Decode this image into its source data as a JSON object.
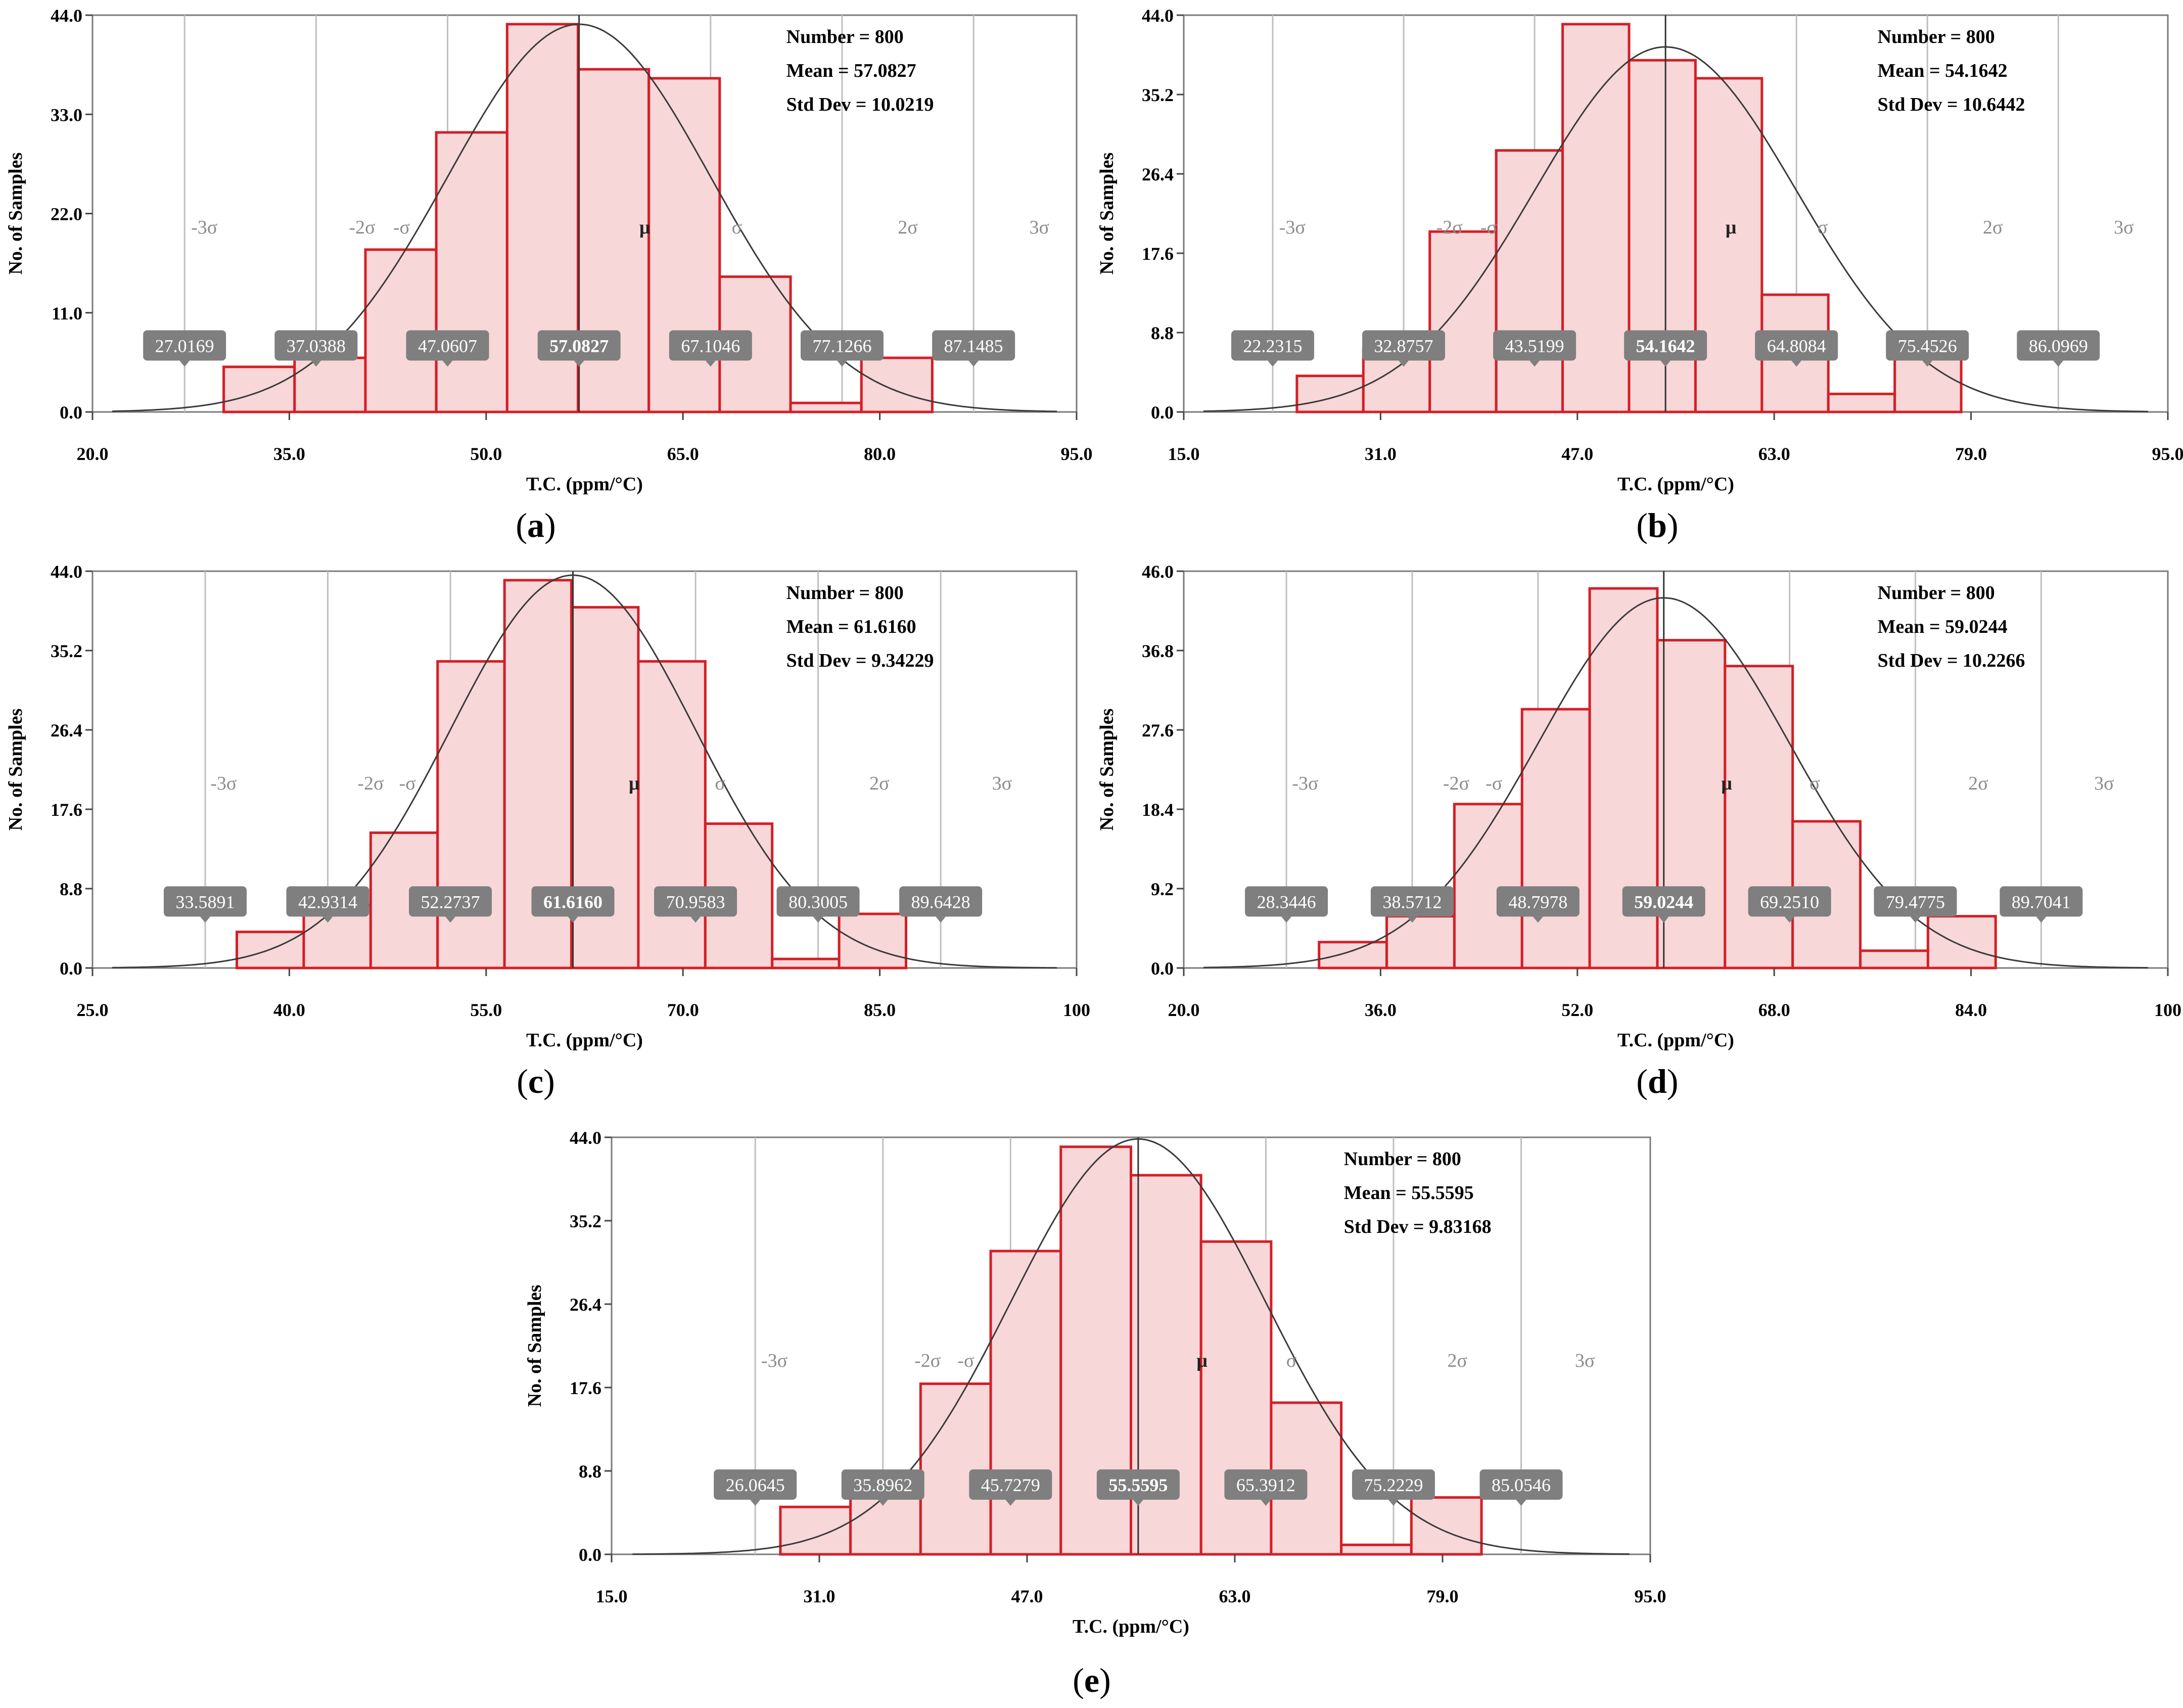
{
  "chart_data": [
    {
      "panel": "a",
      "type": "bar",
      "ylabel": "No. of Samples",
      "xlabel": "T.C. (ppm/°C)",
      "xlim": [
        20.0,
        95.0
      ],
      "ylim": [
        0.0,
        44.0
      ],
      "xticks": [
        "20.0",
        "35.0",
        "50.0",
        "65.0",
        "80.0",
        "95.0"
      ],
      "yticks": [
        "0.0",
        "11.0",
        "22.0",
        "33.0",
        "44.0"
      ],
      "bin_edges": [
        30.0,
        35.4,
        40.8,
        46.2,
        51.6,
        57.0,
        62.4,
        67.8,
        73.2,
        78.6,
        84.0
      ],
      "values": [
        5,
        6,
        18,
        31,
        43,
        38,
        37,
        15,
        1,
        6
      ],
      "stats": [
        "Number = 800",
        "Mean = 57.0827",
        "Std Dev = 10.0219"
      ],
      "sigma_lines": [
        27.0169,
        37.0388,
        47.0607,
        57.0827,
        67.1046,
        77.1266,
        87.1485
      ],
      "sigma_labels": [
        "27.0169",
        "37.0388",
        "47.0607",
        "57.0827",
        "67.1046",
        "77.1266",
        "87.1485"
      ],
      "zone_labels": [
        "-3σ",
        "-2σ",
        "-σ",
        "μ",
        "σ",
        "2σ",
        "3σ"
      ],
      "caption": "a"
    },
    {
      "panel": "b",
      "type": "bar",
      "ylabel": "No. of Samples",
      "xlabel": "T.C. (ppm/°C)",
      "xlim": [
        15.0,
        95.0
      ],
      "ylim": [
        0.0,
        44.0
      ],
      "xticks": [
        "15.0",
        "31.0",
        "47.0",
        "63.0",
        "79.0",
        "95.0"
      ],
      "yticks": [
        "0.0",
        "8.8",
        "17.6",
        "26.4",
        "35.2",
        "44.0"
      ],
      "bin_edges": [
        24.2,
        29.6,
        35.0,
        40.4,
        45.8,
        51.2,
        56.6,
        62.0,
        67.4,
        72.8,
        78.2
      ],
      "values": [
        4,
        7,
        20,
        29,
        43,
        39,
        37,
        13,
        2,
        6
      ],
      "stats": [
        "Number = 800",
        "Mean = 54.1642",
        "Std Dev = 10.6442"
      ],
      "sigma_lines": [
        22.2315,
        32.8757,
        43.5199,
        54.1642,
        64.8084,
        75.4526,
        86.0969
      ],
      "sigma_labels": [
        "22.2315",
        "32.8757",
        "43.5199",
        "54.1642",
        "64.8084",
        "75.4526",
        "86.0969"
      ],
      "zone_labels": [
        "-3σ",
        "-2σ",
        "-σ",
        "μ",
        "σ",
        "2σ",
        "3σ"
      ],
      "caption": "b"
    },
    {
      "panel": "c",
      "type": "bar",
      "ylabel": "No. of Samples",
      "xlabel": "T.C. (ppm/°C)",
      "xlim": [
        25.0,
        100.0
      ],
      "ylim": [
        0.0,
        44.0
      ],
      "xticks": [
        "25.0",
        "40.0",
        "55.0",
        "70.0",
        "85.0",
        "100"
      ],
      "yticks": [
        "0.0",
        "8.8",
        "17.6",
        "26.4",
        "35.2",
        "44.0"
      ],
      "bin_edges": [
        36.0,
        41.1,
        46.2,
        51.3,
        56.4,
        61.5,
        66.6,
        71.7,
        76.8,
        81.9,
        87.0
      ],
      "values": [
        4,
        7,
        15,
        34,
        43,
        40,
        34,
        16,
        1,
        6
      ],
      "stats": [
        "Number = 800",
        "Mean = 61.6160",
        "Std Dev = 9.34229"
      ],
      "sigma_lines": [
        33.5891,
        42.9314,
        52.2737,
        61.616,
        70.9583,
        80.3005,
        89.6428
      ],
      "sigma_labels": [
        "33.5891",
        "42.9314",
        "52.2737",
        "61.6160",
        "70.9583",
        "80.3005",
        "89.6428"
      ],
      "zone_labels": [
        "-3σ",
        "-2σ",
        "-σ",
        "μ",
        "σ",
        "2σ",
        "3σ"
      ],
      "caption": "c"
    },
    {
      "panel": "d",
      "type": "bar",
      "ylabel": "No. of Samples",
      "xlabel": "T.C. (ppm/°C)",
      "xlim": [
        20.0,
        100.0
      ],
      "ylim": [
        0.0,
        46.0
      ],
      "xticks": [
        "20.0",
        "36.0",
        "52.0",
        "68.0",
        "84.0",
        "100"
      ],
      "yticks": [
        "0.0",
        "9.2",
        "18.4",
        "27.6",
        "36.8",
        "46.0"
      ],
      "bin_edges": [
        31.0,
        36.5,
        42.0,
        47.5,
        53.0,
        58.5,
        64.0,
        69.5,
        75.0,
        80.5,
        86.0
      ],
      "values": [
        3,
        6,
        19,
        30,
        44,
        38,
        35,
        17,
        2,
        6
      ],
      "stats": [
        "Number = 800",
        "Mean = 59.0244",
        "Std Dev = 10.2266"
      ],
      "sigma_lines": [
        28.3446,
        38.5712,
        48.7978,
        59.0244,
        69.251,
        79.4775,
        89.7041
      ],
      "sigma_labels": [
        "28.3446",
        "38.5712",
        "48.7978",
        "59.0244",
        "69.2510",
        "79.4775",
        "89.7041"
      ],
      "zone_labels": [
        "-3σ",
        "-2σ",
        "-σ",
        "μ",
        "σ",
        "2σ",
        "3σ"
      ],
      "caption": "d"
    },
    {
      "panel": "e",
      "type": "bar",
      "ylabel": "No. of Samples",
      "xlabel": "T.C. (ppm/°C)",
      "xlim": [
        15.0,
        95.0
      ],
      "ylim": [
        0.0,
        44.0
      ],
      "xticks": [
        "15.0",
        "31.0",
        "47.0",
        "63.0",
        "79.0",
        "95.0"
      ],
      "yticks": [
        "0.0",
        "8.8",
        "17.6",
        "26.4",
        "35.2",
        "44.0"
      ],
      "bin_edges": [
        28.0,
        33.4,
        38.8,
        44.2,
        49.6,
        55.0,
        60.4,
        65.8,
        71.2,
        76.6,
        82.0
      ],
      "values": [
        5,
        6,
        18,
        32,
        43,
        40,
        33,
        16,
        1,
        6
      ],
      "stats": [
        "Number = 800",
        "Mean = 55.5595",
        "Std Dev = 9.83168"
      ],
      "sigma_lines": [
        26.0645,
        35.8962,
        45.7279,
        55.5595,
        65.3912,
        75.2229,
        85.0546
      ],
      "sigma_labels": [
        "26.0645",
        "35.8962",
        "45.7279",
        "55.5595",
        "65.3912",
        "75.2229",
        "85.0546"
      ],
      "zone_labels": [
        "-3σ",
        "-2σ",
        "-σ",
        "μ",
        "σ",
        "2σ",
        "3σ"
      ],
      "caption": "e"
    }
  ],
  "colors": {
    "bar_fill": "#f8d7d9",
    "bar_stroke": "#d41f26",
    "sigma_line": "#bfbfbf",
    "mean_line": "#333333",
    "label_box": "#7f7f7f",
    "label_text": "#ffffff",
    "zone_text": "#8c8c8c",
    "curve": "#3a3a3a"
  }
}
